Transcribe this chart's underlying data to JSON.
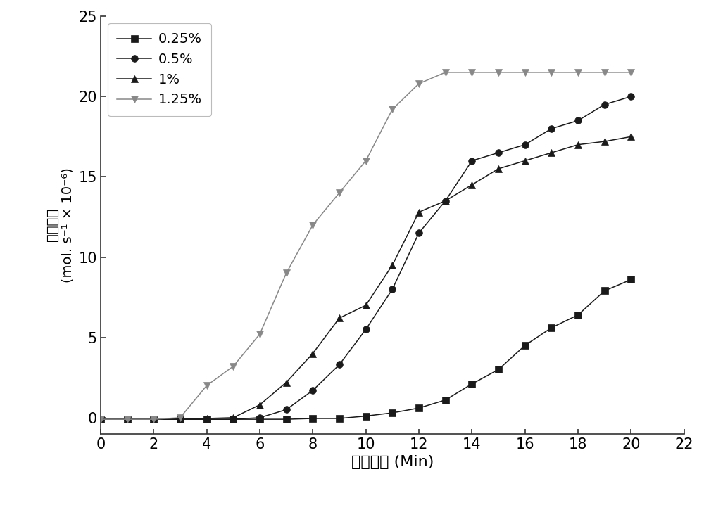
{
  "title": "",
  "xlabel": "辐照时间 (Min)",
  "ylabel_chinese": "聚合速率",
  "ylabel_english": "(mol. s⁻¹ × 10⁻⁶)",
  "xlim": [
    0,
    22
  ],
  "ylim": [
    -1,
    25
  ],
  "xticks": [
    0,
    2,
    4,
    6,
    8,
    10,
    12,
    14,
    16,
    18,
    20,
    22
  ],
  "yticks": [
    0,
    5,
    10,
    15,
    20,
    25
  ],
  "background_color": "#ffffff",
  "series": [
    {
      "label": "0.25%",
      "color": "#1a1a1a",
      "marker": "s",
      "x": [
        0,
        1,
        2,
        3,
        4,
        5,
        6,
        7,
        8,
        9,
        10,
        11,
        12,
        13,
        14,
        15,
        16,
        17,
        18,
        19,
        20
      ],
      "y": [
        -0.1,
        -0.1,
        -0.1,
        -0.1,
        -0.1,
        -0.1,
        -0.1,
        -0.1,
        -0.05,
        -0.05,
        0.1,
        0.3,
        0.6,
        1.1,
        2.1,
        3.0,
        4.5,
        5.6,
        6.4,
        7.9,
        8.6
      ]
    },
    {
      "label": "0.5%",
      "color": "#1a1a1a",
      "marker": "o",
      "x": [
        0,
        1,
        2,
        3,
        4,
        5,
        6,
        7,
        8,
        9,
        10,
        11,
        12,
        13,
        14,
        15,
        16,
        17,
        18,
        19,
        20
      ],
      "y": [
        -0.1,
        -0.1,
        -0.1,
        -0.1,
        -0.1,
        -0.1,
        0.0,
        0.5,
        1.7,
        3.3,
        5.5,
        8.0,
        11.5,
        13.5,
        16.0,
        16.5,
        17.0,
        18.0,
        18.5,
        19.5,
        20.0
      ]
    },
    {
      "label": "1%",
      "color": "#1a1a1a",
      "marker": "^",
      "x": [
        0,
        1,
        2,
        3,
        4,
        5,
        6,
        7,
        8,
        9,
        10,
        11,
        12,
        13,
        14,
        15,
        16,
        17,
        18,
        19,
        20
      ],
      "y": [
        -0.1,
        -0.1,
        -0.1,
        -0.1,
        -0.05,
        0.0,
        0.8,
        2.2,
        4.0,
        6.2,
        7.0,
        9.5,
        12.8,
        13.5,
        14.5,
        15.5,
        16.0,
        16.5,
        17.0,
        17.2,
        17.5
      ]
    },
    {
      "label": "1.25%",
      "color": "#888888",
      "marker": "v",
      "x": [
        0,
        1,
        2,
        3,
        4,
        5,
        6,
        7,
        8,
        9,
        10,
        11,
        12,
        13,
        14,
        15,
        16,
        17,
        18,
        19,
        20
      ],
      "y": [
        -0.1,
        -0.1,
        -0.1,
        0.0,
        2.0,
        3.2,
        5.2,
        9.0,
        12.0,
        14.0,
        16.0,
        19.2,
        20.8,
        21.5,
        21.5,
        21.5,
        21.5,
        21.5,
        21.5,
        21.5,
        21.5
      ]
    }
  ]
}
